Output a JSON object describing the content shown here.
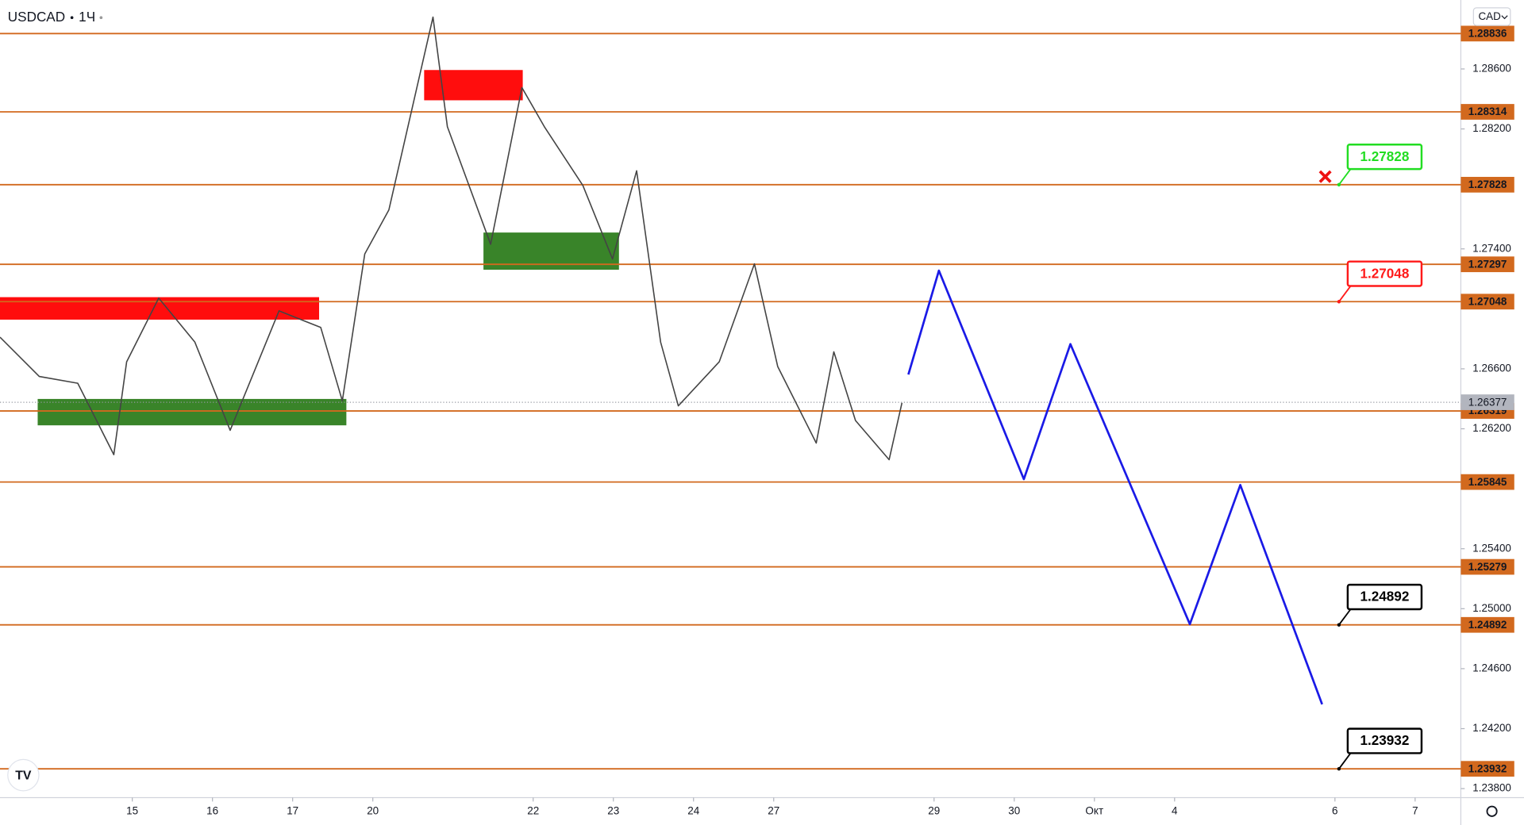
{
  "header": {
    "symbol": "USDCAD",
    "interval": "1Ч"
  },
  "currency": "CAD",
  "chart_data": {
    "type": "line",
    "xlim": [
      -1.65,
      16.57
    ],
    "ylim": [
      1.2374,
      1.2906
    ],
    "xticks": [
      {
        "value": 0,
        "label": "15"
      },
      {
        "value": 1,
        "label": "16"
      },
      {
        "value": 2,
        "label": "17"
      },
      {
        "value": 3,
        "label": "20"
      },
      {
        "value": 5,
        "label": "22"
      },
      {
        "value": 6,
        "label": "23"
      },
      {
        "value": 7,
        "label": "24"
      },
      {
        "value": 8,
        "label": "27"
      },
      {
        "value": 10,
        "label": "29"
      },
      {
        "value": 11,
        "label": "30"
      },
      {
        "value": 12,
        "label": "Окт"
      },
      {
        "value": 13,
        "label": "4"
      },
      {
        "value": 15,
        "label": "6"
      },
      {
        "value": 16,
        "label": "7"
      }
    ],
    "yticks": [
      {
        "value": 1.286,
        "label": "1.28600"
      },
      {
        "value": 1.282,
        "label": "1.28200"
      },
      {
        "value": 1.274,
        "label": "1.27400"
      },
      {
        "value": 1.266,
        "label": "1.26600"
      },
      {
        "value": 1.262,
        "label": "1.26200"
      },
      {
        "value": 1.254,
        "label": "1.25400"
      },
      {
        "value": 1.25,
        "label": "1.25000"
      },
      {
        "value": 1.246,
        "label": "1.24600"
      },
      {
        "value": 1.242,
        "label": "1.24200"
      },
      {
        "value": 1.238,
        "label": "1.23800"
      }
    ],
    "series": [
      {
        "color": "#444444",
        "x": [
          -1.65,
          -1.16,
          -0.68,
          -0.23,
          -0.07,
          0.33,
          0.78,
          1.22,
          1.83,
          2.35,
          2.62,
          2.9,
          3.2,
          3.75,
          3.93,
          4.47,
          4.86,
          5.14,
          5.62,
          5.99,
          6.29,
          6.59,
          6.81,
          7.32,
          7.76,
          8.05,
          8.53,
          8.75,
          9.02,
          9.44,
          9.6
        ],
        "values": [
          1.26811,
          1.26549,
          1.26504,
          1.26027,
          1.26647,
          1.27072,
          1.26778,
          1.2619,
          1.26987,
          1.26876,
          1.26386,
          1.27366,
          1.2766,
          1.28946,
          1.28215,
          1.27431,
          1.28476,
          1.28215,
          1.27823,
          1.27333,
          1.27921,
          1.26778,
          1.26353,
          1.26647,
          1.273,
          1.26615,
          1.26105,
          1.26713,
          1.26255,
          1.25994,
          1.26373
        ]
      },
      {
        "color": "#1a1ae6",
        "x": [
          9.68,
          10.06,
          11.12,
          11.7,
          13.19,
          13.82,
          14.84
        ],
        "values": [
          1.26562,
          1.27255,
          1.25864,
          1.26765,
          1.24897,
          1.25825,
          1.24362
        ]
      }
    ],
    "levels": {
      "color": "#d2691e",
      "values": [
        1.28836,
        1.28314,
        1.27828,
        1.27297,
        1.27048,
        1.26319,
        1.25845,
        1.25279,
        1.24892,
        1.23932
      ]
    },
    "last_price": 1.26377,
    "zones": [
      {
        "x": [
          -1.65,
          2.33
        ],
        "y": [
          1.26928,
          1.27078
        ],
        "color": "#ff0000"
      },
      {
        "x": [
          -1.18,
          2.67
        ],
        "y": [
          1.26223,
          1.26399
        ],
        "color": "#2e7d1e"
      },
      {
        "x": [
          3.64,
          4.87
        ],
        "y": [
          1.28391,
          1.28593
        ],
        "color": "#ff0000"
      },
      {
        "x": [
          4.38,
          6.07
        ],
        "y": [
          1.27261,
          1.27509
        ],
        "color": "#2e7d1e"
      }
    ],
    "callout_x": 15.05,
    "callouts": [
      {
        "value": 1.27828,
        "color": "#22dd22"
      },
      {
        "value": 1.27048,
        "color": "#ff1a1a"
      },
      {
        "value": 1.24892,
        "color": "#000000"
      },
      {
        "value": 1.23932,
        "color": "#000000"
      }
    ]
  }
}
